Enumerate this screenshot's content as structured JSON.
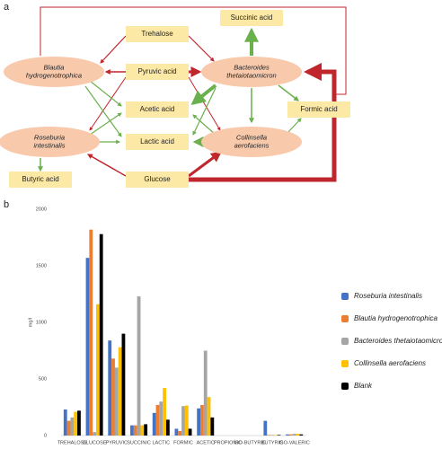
{
  "panels": {
    "a": "a",
    "b": "b"
  },
  "diagram": {
    "nodes": [
      {
        "kind": "organism",
        "lines": [
          "Blautia",
          "hydrogenotrophica"
        ]
      },
      {
        "kind": "organism",
        "lines": [
          "Bacteroides",
          "thetaiotaomicron"
        ]
      },
      {
        "kind": "organism",
        "lines": [
          "Roseburia",
          "intestinalis"
        ]
      },
      {
        "kind": "organism",
        "lines": [
          "Collinsella",
          "aerofaciens"
        ]
      },
      {
        "kind": "compound",
        "lines": [
          "Trehalose"
        ]
      },
      {
        "kind": "compound",
        "lines": [
          "Pyruvic acid"
        ]
      },
      {
        "kind": "compound",
        "lines": [
          "Acetic acid"
        ]
      },
      {
        "kind": "compound",
        "lines": [
          "Lactic acid"
        ]
      },
      {
        "kind": "compound",
        "lines": [
          "Glucose"
        ]
      },
      {
        "kind": "compound",
        "lines": [
          "Succinic acid"
        ]
      },
      {
        "kind": "compound",
        "lines": [
          "Formic acid"
        ]
      },
      {
        "kind": "compound",
        "lines": [
          "Butyric acid"
        ]
      }
    ]
  },
  "chart_data": {
    "type": "bar",
    "y_label": "mg/l",
    "categories": [
      "TREHALOSE",
      "GLUCOSE",
      "PYRUVIC",
      "SUCCINIC",
      "LACTIC",
      "FORMIC",
      "ACETIC",
      "PROPIONIC",
      "ISO-BUTYRIC",
      "BUTYRIC",
      "ISO-VALERIC"
    ],
    "series": [
      {
        "name": "Roseburia intestinalis",
        "color": "#4472c4",
        "values": [
          230,
          1570,
          840,
          90,
          200,
          60,
          240,
          0,
          0,
          130,
          10
        ]
      },
      {
        "name": "Blautia hydrogenotrophica",
        "color": "#ed7d31",
        "values": [
          130,
          1820,
          680,
          90,
          270,
          40,
          270,
          0,
          0,
          5,
          10
        ]
      },
      {
        "name": "Bacteroides thetaiotaomicron",
        "color": "#a5a5a5",
        "values": [
          160,
          30,
          600,
          1230,
          300,
          260,
          750,
          0,
          0,
          5,
          15
        ]
      },
      {
        "name": "Collinsella aerofaciens",
        "color": "#ffc000",
        "values": [
          210,
          1160,
          780,
          90,
          420,
          265,
          340,
          0,
          0,
          5,
          15
        ]
      },
      {
        "name": "Blank",
        "color": "#000000",
        "values": [
          220,
          1780,
          900,
          100,
          140,
          60,
          160,
          0,
          0,
          5,
          10
        ]
      }
    ],
    "ylim": [
      0,
      2000
    ],
    "yticks": [
      0,
      500,
      1000,
      1500,
      2000
    ],
    "grid": false,
    "legend": "right"
  }
}
